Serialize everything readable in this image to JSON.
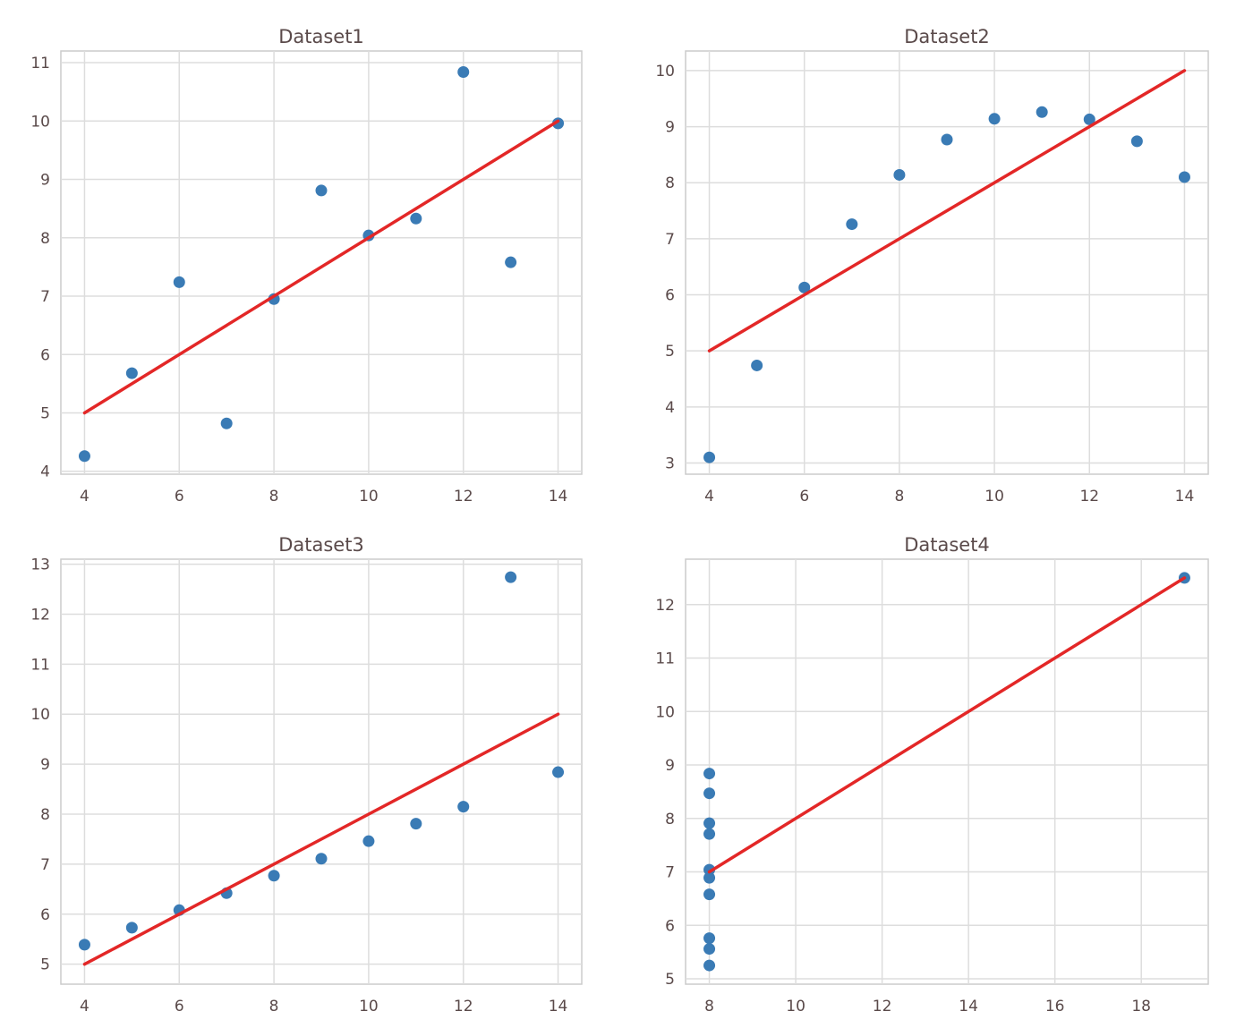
{
  "colors": {
    "point": "#3a7bb5",
    "fit_line": "#e32727",
    "grid": "#dddddd",
    "frame": "#cccccc",
    "text": "#5a4a4a"
  },
  "chart_data": [
    {
      "type": "scatter",
      "title": "Dataset1",
      "xlabel": "",
      "ylabel": "",
      "xlim": [
        3.5,
        14.5
      ],
      "ylim": [
        3.95,
        11.2
      ],
      "xticks": [
        4,
        6,
        8,
        10,
        12,
        14
      ],
      "yticks": [
        4,
        5,
        6,
        7,
        8,
        9,
        10,
        11
      ],
      "grid": true,
      "series": [
        {
          "type": "scatter",
          "x": [
            10,
            8,
            13,
            9,
            11,
            14,
            6,
            4,
            12,
            7,
            5
          ],
          "y": [
            8.04,
            6.95,
            7.58,
            8.81,
            8.33,
            9.96,
            7.24,
            4.26,
            10.84,
            4.82,
            5.68
          ]
        },
        {
          "type": "line",
          "x": [
            4,
            14
          ],
          "y": [
            5.0,
            10.0
          ]
        }
      ]
    },
    {
      "type": "scatter",
      "title": "Dataset2",
      "xlabel": "",
      "ylabel": "",
      "xlim": [
        3.5,
        14.5
      ],
      "ylim": [
        2.8,
        10.35
      ],
      "xticks": [
        4,
        6,
        8,
        10,
        12,
        14
      ],
      "yticks": [
        3,
        4,
        5,
        6,
        7,
        8,
        9,
        10
      ],
      "grid": true,
      "series": [
        {
          "type": "scatter",
          "x": [
            10,
            8,
            13,
            9,
            11,
            14,
            6,
            4,
            12,
            7,
            5
          ],
          "y": [
            9.14,
            8.14,
            8.74,
            8.77,
            9.26,
            8.1,
            6.13,
            3.1,
            9.13,
            7.26,
            4.74
          ]
        },
        {
          "type": "line",
          "x": [
            4,
            14
          ],
          "y": [
            5.0,
            10.0
          ]
        }
      ]
    },
    {
      "type": "scatter",
      "title": "Dataset3",
      "xlabel": "",
      "ylabel": "",
      "xlim": [
        3.5,
        14.5
      ],
      "ylim": [
        4.6,
        13.1
      ],
      "xticks": [
        4,
        6,
        8,
        10,
        12,
        14
      ],
      "yticks": [
        5,
        6,
        7,
        8,
        9,
        10,
        11,
        12,
        13
      ],
      "grid": true,
      "series": [
        {
          "type": "scatter",
          "x": [
            10,
            8,
            13,
            9,
            11,
            14,
            6,
            4,
            12,
            7,
            5
          ],
          "y": [
            7.46,
            6.77,
            12.74,
            7.11,
            7.81,
            8.84,
            6.08,
            5.39,
            8.15,
            6.42,
            5.73
          ]
        },
        {
          "type": "line",
          "x": [
            4,
            14
          ],
          "y": [
            5.0,
            10.0
          ]
        }
      ]
    },
    {
      "type": "scatter",
      "title": "Dataset4",
      "xlabel": "",
      "ylabel": "",
      "xlim": [
        7.45,
        19.55
      ],
      "ylim": [
        4.9,
        12.85
      ],
      "xticks": [
        8,
        10,
        12,
        14,
        16,
        18
      ],
      "yticks": [
        5,
        6,
        7,
        8,
        9,
        10,
        11,
        12
      ],
      "grid": true,
      "series": [
        {
          "type": "scatter",
          "x": [
            8,
            8,
            8,
            8,
            8,
            8,
            8,
            19,
            8,
            8,
            8
          ],
          "y": [
            6.58,
            5.76,
            7.71,
            8.84,
            8.47,
            7.04,
            5.25,
            12.5,
            5.56,
            7.91,
            6.89
          ]
        },
        {
          "type": "line",
          "x": [
            8,
            19
          ],
          "y": [
            7.0,
            12.5
          ]
        }
      ]
    }
  ]
}
